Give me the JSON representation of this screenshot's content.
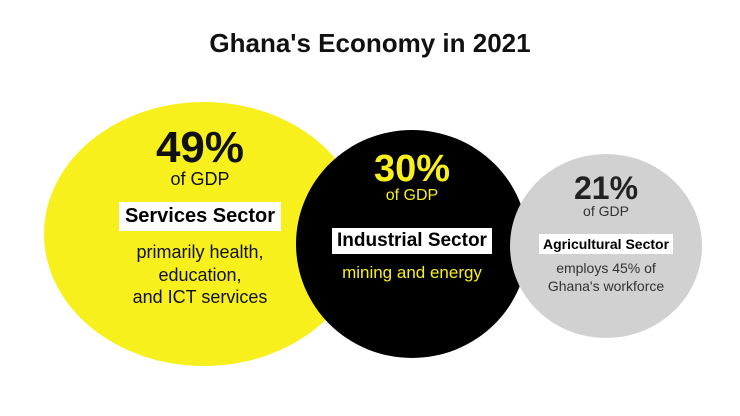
{
  "title": "Ghana's Economy in 2021",
  "colors": {
    "services": "#f7f01c",
    "industrial": "#000000",
    "agricultural": "#d1d1d1",
    "highlight": "#f7f01c"
  },
  "chart_data": {
    "type": "bubble",
    "title": "Ghana's Economy in 2021",
    "unit": "% of GDP",
    "series": [
      {
        "name": "Services Sector",
        "value": 49,
        "value_label": "49%",
        "unit_label": "of GDP",
        "description": [
          "primarily health,",
          "education,",
          "and ICT services"
        ]
      },
      {
        "name": "Industrial Sector",
        "value": 30,
        "value_label": "30%",
        "unit_label": "of GDP",
        "description": [
          "mining and energy"
        ]
      },
      {
        "name": "Agricultural Sector",
        "value": 21,
        "value_label": "21%",
        "unit_label": "of GDP",
        "description": [
          "employs 45% of",
          "Ghana's workforce"
        ]
      }
    ]
  }
}
